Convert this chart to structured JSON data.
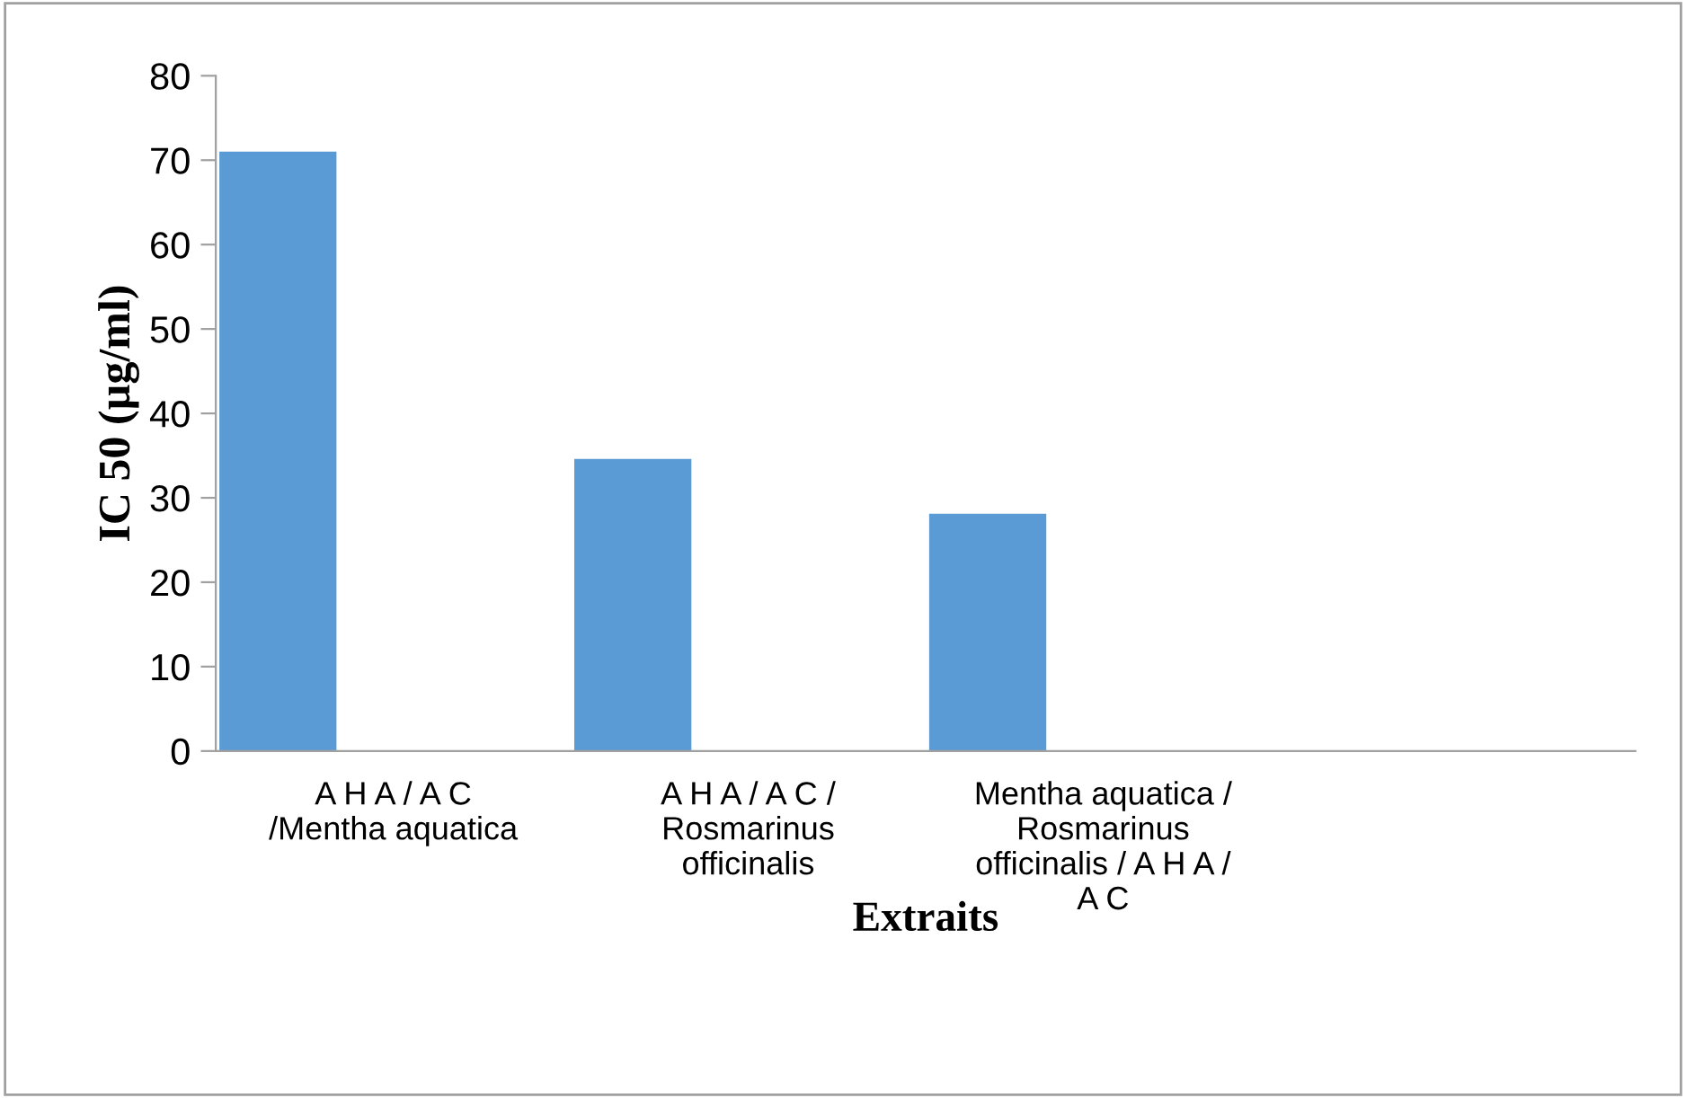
{
  "chart_data": {
    "type": "bar",
    "categories": [
      "A H A / A C\n/Mentha aquatica",
      "A H A / A C /\nRosmarinus\nofficinalis",
      "Mentha aquatica /\nRosmarinus\nofficinalis / A H A /\nA C",
      null
    ],
    "values": [
      71,
      34.6,
      28.1,
      null
    ],
    "color": "#5b9bd5",
    "xlabel": "Extraits",
    "ylabel": "IC 50 (µg/ml)",
    "ylim": [
      0,
      80
    ],
    "yticks": [
      0,
      10,
      20,
      30,
      40,
      50,
      60,
      70,
      80
    ],
    "grid": false,
    "legend": false
  }
}
